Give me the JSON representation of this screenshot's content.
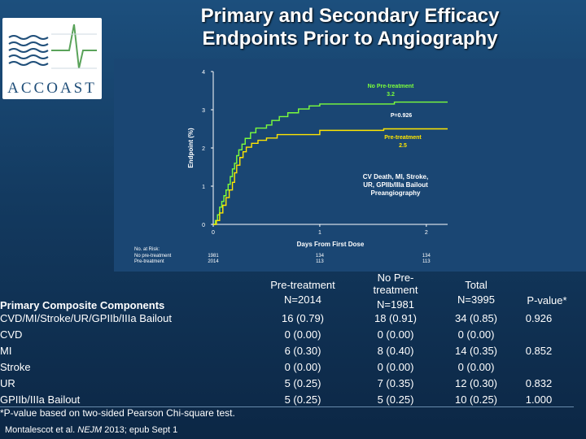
{
  "title_line1": "Primary and Secondary Efficacy",
  "title_line2": "Endpoints Prior to Angiography",
  "logo": {
    "text": "ACCOAST"
  },
  "chart_data": {
    "type": "line",
    "ylabel": "Endpoint (%)",
    "xlabel": "Days From First Dose",
    "xlim": [
      0,
      2.2
    ],
    "ylim": [
      0,
      4
    ],
    "xticks": [
      0,
      1,
      2
    ],
    "yticks": [
      0,
      1,
      2,
      3,
      4
    ],
    "series": [
      {
        "name": "No Pre-treatment",
        "value_label": "3.2",
        "color": "#7cff3b",
        "points": [
          [
            0,
            0
          ],
          [
            0.02,
            0.1
          ],
          [
            0.04,
            0.25
          ],
          [
            0.06,
            0.45
          ],
          [
            0.08,
            0.6
          ],
          [
            0.1,
            0.75
          ],
          [
            0.12,
            0.9
          ],
          [
            0.14,
            1.05
          ],
          [
            0.16,
            1.25
          ],
          [
            0.18,
            1.45
          ],
          [
            0.2,
            1.6
          ],
          [
            0.22,
            1.8
          ],
          [
            0.24,
            1.95
          ],
          [
            0.27,
            2.1
          ],
          [
            0.3,
            2.25
          ],
          [
            0.35,
            2.4
          ],
          [
            0.4,
            2.52
          ],
          [
            0.5,
            2.6
          ],
          [
            0.55,
            2.72
          ],
          [
            0.62,
            2.82
          ],
          [
            0.7,
            2.92
          ],
          [
            0.8,
            3.02
          ],
          [
            0.9,
            3.1
          ],
          [
            1.0,
            3.15
          ],
          [
            1.5,
            3.15
          ],
          [
            1.7,
            3.2
          ],
          [
            2.2,
            3.2
          ]
        ]
      },
      {
        "name": "Pre-treatment",
        "value_label": "2.5",
        "color": "#ffe600",
        "points": [
          [
            0,
            0
          ],
          [
            0.03,
            0.1
          ],
          [
            0.06,
            0.3
          ],
          [
            0.09,
            0.5
          ],
          [
            0.12,
            0.7
          ],
          [
            0.15,
            0.9
          ],
          [
            0.18,
            1.1
          ],
          [
            0.2,
            1.35
          ],
          [
            0.22,
            1.55
          ],
          [
            0.25,
            1.75
          ],
          [
            0.28,
            1.9
          ],
          [
            0.31,
            2.02
          ],
          [
            0.36,
            2.12
          ],
          [
            0.42,
            2.2
          ],
          [
            0.5,
            2.26
          ],
          [
            0.6,
            2.35
          ],
          [
            0.8,
            2.35
          ],
          [
            1.0,
            2.4
          ],
          [
            1.0,
            2.46
          ],
          [
            1.5,
            2.46
          ],
          [
            1.6,
            2.5
          ],
          [
            2.2,
            2.5
          ]
        ]
      }
    ],
    "annotations": {
      "pvalue": "P=0.926",
      "label_lines": [
        "CV Death, MI, Stroke,",
        "UR, GPIIb/IIIa Bailout",
        "Preangiography"
      ]
    },
    "at_risk": {
      "header": "No. at Risk:",
      "rows": [
        {
          "label": "No pre-treatment",
          "values": [
            "1981",
            "134",
            "134"
          ]
        },
        {
          "label": "Pre-treatment",
          "values": [
            "2014",
            "113",
            "113"
          ]
        }
      ]
    }
  },
  "table": {
    "header_label": "Primary Composite Components",
    "columns": [
      {
        "line1": "Pre-treatment",
        "line2": "N=2014"
      },
      {
        "line1": "No Pre-",
        "line2": "treatment",
        "line3": "N=1981"
      },
      {
        "line1": "Total",
        "line2": "N=3995"
      },
      {
        "line1": "P-value*"
      }
    ],
    "rows": [
      {
        "label": "CVD/MI/Stroke/UR/GPIIb/IIIa Bailout",
        "pre": "16 (0.79)",
        "nopre": "18 (0.91)",
        "total": "34 (0.85)",
        "p": "0.926"
      },
      {
        "label": "CVD",
        "pre": "0 (0.00)",
        "nopre": "0 (0.00)",
        "total": "0 (0.00)",
        "p": ""
      },
      {
        "label": "MI",
        "pre": "6 (0.30)",
        "nopre": "8 (0.40)",
        "total": "14 (0.35)",
        "p": "0.852"
      },
      {
        "label": "Stroke",
        "pre": "0 (0.00)",
        "nopre": "0 (0.00)",
        "total": "0 (0.00)",
        "p": ""
      },
      {
        "label": "UR",
        "pre": "5 (0.25)",
        "nopre": "7  (0.35)",
        "total": "12 (0.30)",
        "p": "0.832"
      },
      {
        "label": "GPIIb/IIIa Bailout",
        "pre": "5 (0.25)",
        "nopre": "5 (0.25)",
        "total": "10 (0.25)",
        "p": "1.000"
      }
    ]
  },
  "footnote": "*P-value based on two-sided Pearson Chi-square test.",
  "citation_pre": "Montalescot et al. ",
  "citation_journal": "NEJM",
  "citation_post": " 2013; epub Sept 1"
}
